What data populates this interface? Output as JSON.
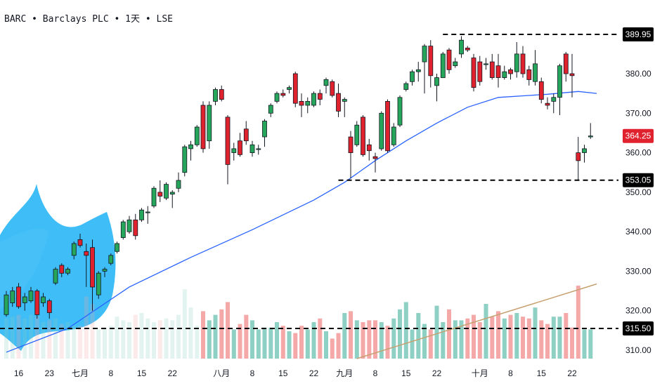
{
  "header": {
    "title": "BARC • Barclays PLC • 1天 • LSE"
  },
  "chart_data": {
    "type": "candlestick",
    "symbol": "BARC",
    "interval": "1天",
    "exchange": "LSE",
    "ylim": [
      308,
      395
    ],
    "y_ticks": [
      "310.00",
      "320.00",
      "330.00",
      "340.00",
      "350.00",
      "360.00",
      "370.00",
      "380.00"
    ],
    "x_ticks": [
      {
        "label": "16",
        "bar": 2
      },
      {
        "label": "23",
        "bar": 7
      },
      {
        "label": "七月",
        "bar": 12
      },
      {
        "label": "8",
        "bar": 17
      },
      {
        "label": "15",
        "bar": 22
      },
      {
        "label": "22",
        "bar": 27
      },
      {
        "label": "八月",
        "bar": 35
      },
      {
        "label": "8",
        "bar": 40
      },
      {
        "label": "15",
        "bar": 45
      },
      {
        "label": "22",
        "bar": 50
      },
      {
        "label": "九月",
        "bar": 55
      },
      {
        "label": "8",
        "bar": 60
      },
      {
        "label": "15",
        "bar": 65
      },
      {
        "label": "22",
        "bar": 70
      },
      {
        "label": "十月",
        "bar": 77
      },
      {
        "label": "8",
        "bar": 82
      },
      {
        "label": "15",
        "bar": 87
      },
      {
        "label": "22",
        "bar": 92
      }
    ],
    "levels": [
      {
        "label": "389.95",
        "value": 389.95,
        "from_bar": 71
      },
      {
        "label": "353.05",
        "value": 353.05,
        "from_bar": 54
      }
    ],
    "volume_level": {
      "label": "315.50",
      "value": 315.5
    },
    "last_price": {
      "label": "364.25",
      "value": 364.25
    },
    "colors": {
      "up": "#26a65b",
      "down": "#e0222e",
      "vol_up": "#8fd0c5",
      "vol_down": "#f4a8a8",
      "ma": "#2962ff",
      "trend": "#c7a070",
      "level": "#000000",
      "last_tag": "#e0222e",
      "level_tag": "#000000",
      "blob": "#29b6f6"
    },
    "candles": [
      [
        319.0,
        325.0,
        318.5,
        324.0
      ],
      [
        322.0,
        326.0,
        321.0,
        325.0
      ],
      [
        326.0,
        327.0,
        320.5,
        321.0
      ],
      [
        322.0,
        324.5,
        320.0,
        323.5
      ],
      [
        322.5,
        326.0,
        322.0,
        325.0
      ],
      [
        325.0,
        325.5,
        318.0,
        319.0
      ],
      [
        322.0,
        324.5,
        321.0,
        323.5
      ],
      [
        322.5,
        323.0,
        318.0,
        319.5
      ],
      [
        327.0,
        331.0,
        326.5,
        330.5
      ],
      [
        331.5,
        332.0,
        328.5,
        329.5
      ],
      [
        329.5,
        331.0,
        329.0,
        330.5
      ],
      [
        334.0,
        337.5,
        333.0,
        337.0
      ],
      [
        338.0,
        339.5,
        336.0,
        336.5
      ],
      [
        335.0,
        337.0,
        326.0,
        334.0
      ],
      [
        336.0,
        338.0,
        320.0,
        326.0
      ],
      [
        324.0,
        330.0,
        323.0,
        329.5
      ],
      [
        330.0,
        331.0,
        328.5,
        330.5
      ],
      [
        332.0,
        334.5,
        331.5,
        334.0
      ],
      [
        335.0,
        337.5,
        334.5,
        337.0
      ],
      [
        338.5,
        343.0,
        338.0,
        342.5
      ],
      [
        340.0,
        344.0,
        339.5,
        343.0
      ],
      [
        343.0,
        344.5,
        338.0,
        339.0
      ],
      [
        343.0,
        346.0,
        342.5,
        345.5
      ],
      [
        345.0,
        346.5,
        342.0,
        345.0
      ],
      [
        346.5,
        351.5,
        346.0,
        351.0
      ],
      [
        350.0,
        353.0,
        347.5,
        349.0
      ],
      [
        348.5,
        352.5,
        348.0,
        352.0
      ],
      [
        349.5,
        350.5,
        346.0,
        350.0
      ],
      [
        351.0,
        355.0,
        350.0,
        353.0
      ],
      [
        355.0,
        362.0,
        354.0,
        361.5
      ],
      [
        361.0,
        363.0,
        358.0,
        362.0
      ],
      [
        362.0,
        367.0,
        361.5,
        366.5
      ],
      [
        372.0,
        373.0,
        360.0,
        361.0
      ],
      [
        363.0,
        373.0,
        361.0,
        372.0
      ],
      [
        373.0,
        376.5,
        372.0,
        376.0
      ],
      [
        376.0,
        377.0,
        373.0,
        373.5
      ],
      [
        369.0,
        369.5,
        352.0,
        357.0
      ],
      [
        360.0,
        362.5,
        358.0,
        361.0
      ],
      [
        363.0,
        365.0,
        359.0,
        359.5
      ],
      [
        366.0,
        368.0,
        362.0,
        363.0
      ],
      [
        360.0,
        363.0,
        359.0,
        362.0
      ],
      [
        361.0,
        362.0,
        359.5,
        361.0
      ],
      [
        364.0,
        368.5,
        361.5,
        368.0
      ],
      [
        370.0,
        372.5,
        369.0,
        372.0
      ],
      [
        373.0,
        375.5,
        372.5,
        375.0
      ],
      [
        375.0,
        376.0,
        374.0,
        374.5
      ],
      [
        376.0,
        377.0,
        375.0,
        376.5
      ],
      [
        380.0,
        380.5,
        371.5,
        372.5
      ],
      [
        373.0,
        375.0,
        369.0,
        372.0
      ],
      [
        372.0,
        374.0,
        370.0,
        373.0
      ],
      [
        372.0,
        375.5,
        371.5,
        375.0
      ],
      [
        375.0,
        376.0,
        372.0,
        373.5
      ],
      [
        377.0,
        379.0,
        375.0,
        378.5
      ],
      [
        378.0,
        378.5,
        374.0,
        374.5
      ],
      [
        375.0,
        377.5,
        369.0,
        370.5
      ],
      [
        373.0,
        374.0,
        369.0,
        373.5
      ],
      [
        364.0,
        365.5,
        353.5,
        360.0
      ],
      [
        362.0,
        368.0,
        361.5,
        367.0
      ],
      [
        369.0,
        369.5,
        359.0,
        359.5
      ],
      [
        362.0,
        363.5,
        358.0,
        360.5
      ],
      [
        359.0,
        360.0,
        355.0,
        358.5
      ],
      [
        361.0,
        370.5,
        360.5,
        370.0
      ],
      [
        373.0,
        373.5,
        360.0,
        360.5
      ],
      [
        362.0,
        367.5,
        361.5,
        366.5
      ],
      [
        367.0,
        374.5,
        366.5,
        374.0
      ],
      [
        376.0,
        378.0,
        375.5,
        377.5
      ],
      [
        378.0,
        381.0,
        377.0,
        380.5
      ],
      [
        380.5,
        383.0,
        378.0,
        381.0
      ],
      [
        383.0,
        387.5,
        375.0,
        387.0
      ],
      [
        387.0,
        388.5,
        376.5,
        379.5
      ],
      [
        377.0,
        380.0,
        373.0,
        379.0
      ],
      [
        379.0,
        385.5,
        379.0,
        385.0
      ],
      [
        386.0,
        386.5,
        380.0,
        381.0
      ],
      [
        382.0,
        384.0,
        381.5,
        383.0
      ],
      [
        385.0,
        389.5,
        384.0,
        388.5
      ],
      [
        386.5,
        387.0,
        385.5,
        386.0
      ],
      [
        384.0,
        385.0,
        375.5,
        376.5
      ],
      [
        383.0,
        384.5,
        377.0,
        378.0
      ],
      [
        382.5,
        384.0,
        381.0,
        382.5
      ],
      [
        383.0,
        385.0,
        378.5,
        379.0
      ],
      [
        382.0,
        385.0,
        376.5,
        379.0
      ],
      [
        379.0,
        382.0,
        378.5,
        380.5
      ],
      [
        381.0,
        381.5,
        378.5,
        380.0
      ],
      [
        380.5,
        388.0,
        379.0,
        385.0
      ],
      [
        385.0,
        387.0,
        379.0,
        380.0
      ],
      [
        381.0,
        382.0,
        377.0,
        378.5
      ],
      [
        378.0,
        386.0,
        377.0,
        382.5
      ],
      [
        378.0,
        379.0,
        372.5,
        373.5
      ],
      [
        372.5,
        374.0,
        371.0,
        372.0
      ],
      [
        373.0,
        375.0,
        370.0,
        374.0
      ],
      [
        374.0,
        382.5,
        369.5,
        382.0
      ],
      [
        385.0,
        385.5,
        378.0,
        380.0
      ],
      [
        380.0,
        385.0,
        374.0,
        379.5
      ],
      [
        360.0,
        364.0,
        353.0,
        358.0
      ],
      [
        360.0,
        362.0,
        357.5,
        361.0
      ],
      [
        364.0,
        367.5,
        363.5,
        364.25
      ]
    ],
    "volumes": [
      22,
      23,
      24,
      22,
      24,
      23,
      20,
      21,
      22,
      19,
      20,
      18,
      18,
      34,
      30,
      16,
      17,
      18,
      23,
      21,
      20,
      24,
      25,
      22,
      20,
      21,
      22,
      21,
      24,
      38,
      28,
      18,
      26,
      21,
      24,
      27,
      31,
      16,
      19,
      24,
      21,
      16,
      17,
      17,
      20,
      18,
      15,
      14,
      18,
      16,
      20,
      22,
      15,
      11,
      14,
      25,
      26,
      21,
      20,
      21,
      21,
      20,
      18,
      22,
      27,
      31,
      16,
      25,
      19,
      16,
      29,
      20,
      27,
      21,
      21,
      22,
      24,
      20,
      30,
      23,
      26,
      22,
      24,
      25,
      23,
      22,
      28,
      21,
      19,
      23,
      23,
      25,
      17,
      40,
      16,
      16
    ],
    "ma": [
      [
        0,
        309.5
      ],
      [
        10,
        315.5
      ],
      [
        20,
        326.0
      ],
      [
        30,
        333.5
      ],
      [
        40,
        340.5
      ],
      [
        50,
        348.0
      ],
      [
        55,
        352.5
      ],
      [
        60,
        358.0
      ],
      [
        65,
        363.0
      ],
      [
        70,
        367.5
      ],
      [
        75,
        371.5
      ],
      [
        80,
        374.0
      ],
      [
        85,
        374.5
      ],
      [
        88,
        374.8
      ],
      [
        93,
        375.5
      ],
      [
        96,
        375.0
      ]
    ],
    "trend": [
      [
        57,
        308.0
      ],
      [
        96,
        327.0
      ]
    ]
  }
}
